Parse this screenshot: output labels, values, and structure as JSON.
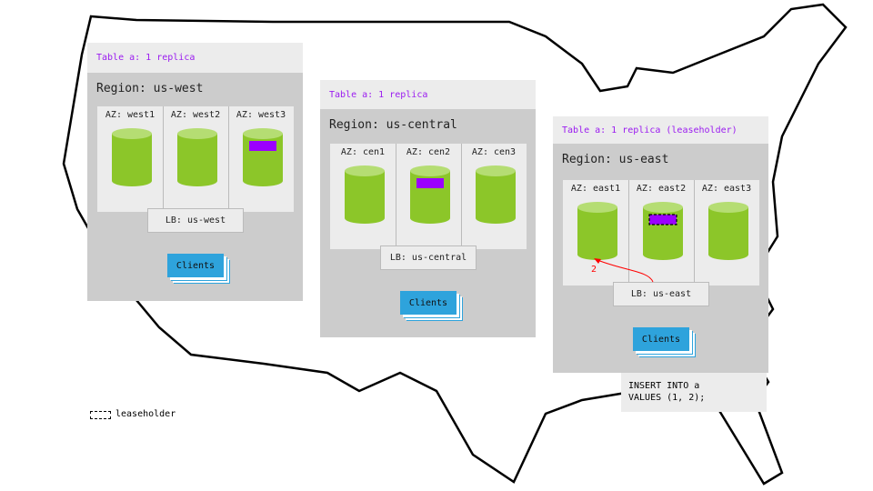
{
  "colors": {
    "replica_cylinder": "#8cc629",
    "replica_top": "#b5dd73",
    "range": "#9b00ff",
    "clients": "#2ea3dc",
    "arrow": "#ff0000",
    "title_text": "#9b1cf0"
  },
  "regions": [
    {
      "table_label": "Table a: 1 replica",
      "title": "Region: us-west",
      "azs": [
        "AZ: west1",
        "AZ: west2",
        "AZ: west3"
      ],
      "replica_az": 2,
      "leaseholder": false,
      "lb": "LB: us-west",
      "clients": "Clients"
    },
    {
      "table_label": "Table a: 1 replica",
      "title": "Region: us-central",
      "azs": [
        "AZ: cen1",
        "AZ: cen2",
        "AZ: cen3"
      ],
      "replica_az": 1,
      "leaseholder": false,
      "lb": "LB: us-central",
      "clients": "Clients"
    },
    {
      "table_label": "Table a: 1 replica (leaseholder)",
      "title": "Region: us-east",
      "azs": [
        "AZ: east1",
        "AZ: east2",
        "AZ: east3"
      ],
      "replica_az": 1,
      "leaseholder": true,
      "lb": "LB: us-east",
      "clients": "Clients"
    }
  ],
  "arrow_label": "2",
  "query": "INSERT INTO a\nVALUES (1, 2);",
  "legend": {
    "label": "leaseholder"
  }
}
